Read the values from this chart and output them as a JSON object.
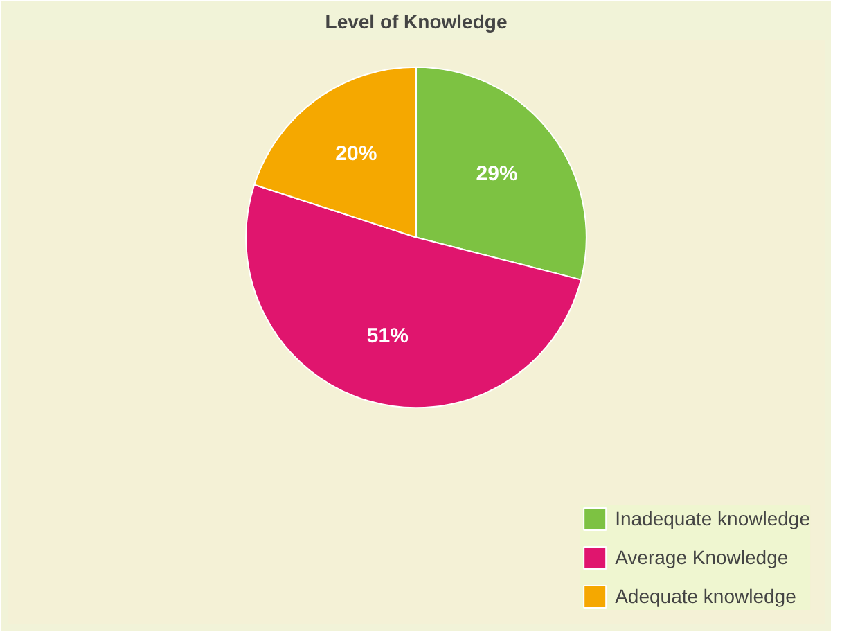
{
  "chart_data": {
    "type": "pie",
    "title": "Level of Knowledge",
    "categories": [
      "Inadequate knowledge",
      "Average Knowledge",
      "Adequate knowledge"
    ],
    "values": [
      29,
      51,
      20
    ],
    "colors": [
      "#7dc242",
      "#e0156e",
      "#f5a800"
    ],
    "value_labels": [
      "29%",
      "51%",
      "20%"
    ],
    "legend": "bottom right"
  }
}
